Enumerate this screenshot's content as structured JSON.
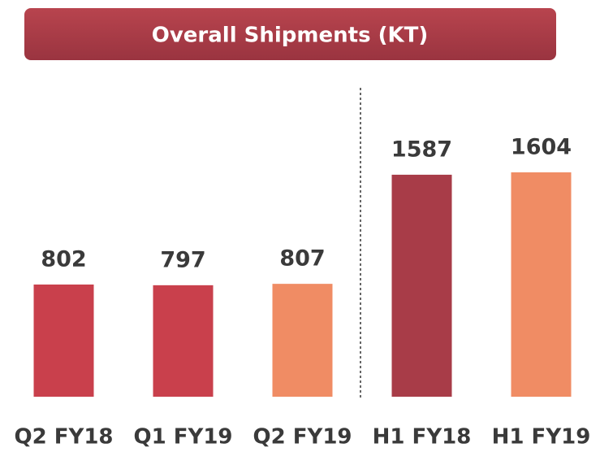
{
  "chart_data": {
    "type": "bar",
    "title": "Overall Shipments (KT)",
    "categories": [
      "Q2 FY18",
      "Q1 FY19",
      "Q2 FY19",
      "H1 FY18",
      "H1 FY19"
    ],
    "values": [
      802,
      797,
      807,
      1587,
      1604
    ],
    "colors": [
      "#c9404c",
      "#c9404c",
      "#f08c64",
      "#a83c48",
      "#f08c64"
    ]
  }
}
